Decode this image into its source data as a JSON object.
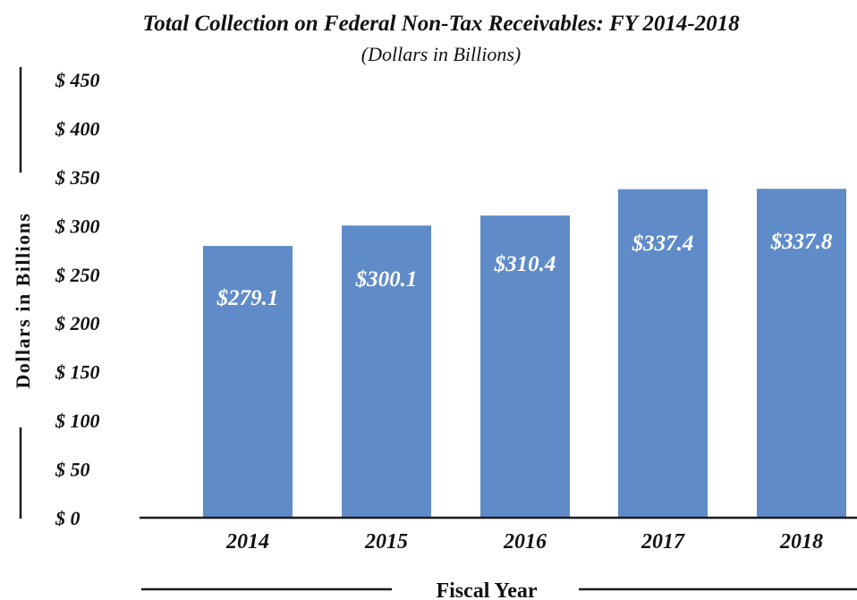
{
  "chart_data": {
    "type": "bar",
    "title": "Total Collection on Federal Non-Tax Receivables: FY 2014-2018",
    "subtitle": "(Dollars in Billions)",
    "xlabel": "Fiscal Year",
    "ylabel": "Dollars in Billions",
    "categories": [
      "2014",
      "2015",
      "2016",
      "2017",
      "2018"
    ],
    "values": [
      279.1,
      300.1,
      310.4,
      337.4,
      337.8
    ],
    "data_labels": [
      "$279.1",
      "$300.1",
      "$310.4",
      "$337.4",
      "$337.8"
    ],
    "yticks": [
      0,
      50,
      100,
      150,
      200,
      250,
      300,
      350,
      400,
      450
    ],
    "ytick_labels": [
      "$ 0",
      "$ 50",
      "$ 100",
      "$ 150",
      "$ 200",
      "$ 250",
      "$ 300",
      "$ 350",
      "$ 400",
      "$ 450"
    ],
    "ylim": [
      0,
      450
    ],
    "grid": false,
    "legend": "none",
    "bar_color": "#5f8bc8",
    "axis_color": "#1a1a1a"
  }
}
